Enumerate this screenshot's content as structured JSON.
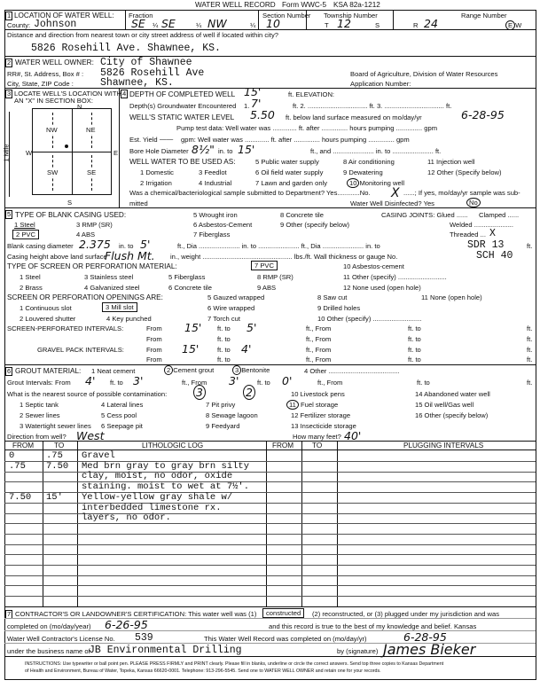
{
  "header": {
    "title": "WATER WELL RECORD",
    "form": "Form WWC-5",
    "ksa": "KSA 82a-1212"
  },
  "s1": {
    "num": "1",
    "label": "LOCATION OF WATER WELL:",
    "county_label": "County:",
    "county": "Johnson",
    "fraction_label": "Fraction",
    "frac1": "SE",
    "frac2": "SE",
    "frac3": "NW",
    "quarter": "¼",
    "section_label": "Section Number",
    "section": "10",
    "township_label": "Township Number",
    "t": "T",
    "township": "12",
    "s": "S",
    "range_label": "Range Number",
    "r": "R",
    "range": "24",
    "e": "E",
    "w": "W",
    "distance_q": "Distance and direction from nearest town or city street address of well if located within city?",
    "distance": "5826 Rosehill Ave. Shawnee, KS."
  },
  "s2": {
    "num": "2",
    "label": "WATER WELL OWNER:",
    "owner": "City of Shawnee",
    "addr_label": "RR#, St. Address, Box # :",
    "addr": "5826 Rosehill Ave",
    "city_label": "City, State, ZIP Code       :",
    "city": "Shawnee, KS.",
    "board": "Board of Agriculture, Division of Water Resources",
    "app": "Application Number:"
  },
  "s3": {
    "num": "3",
    "label1": "LOCATE WELL'S LOCATION WITH",
    "label2": "AN \"X\" IN SECTION BOX:",
    "n": "N",
    "s": "S",
    "e": "E",
    "w": "W",
    "mile": "1 Mile",
    "nw": "NW",
    "ne": "NE",
    "sw": "SW",
    "se": "SE"
  },
  "s4": {
    "num": "4",
    "depth_label": "DEPTH OF COMPLETED WELL",
    "depth": "15'",
    "elev": "ft. ELEVATION:",
    "gw_label": "Depth(s) Groundwater Encountered",
    "gw1_n": "1.",
    "gw1": "7'",
    "gw_rest": "ft. 2. ................................ ft. 3. ................................ ft.",
    "static_label": "WELL'S STATIC WATER LEVEL",
    "static": "5.50",
    "static_rest": "ft. below land surface measured on mo/day/yr",
    "static_date": "6-28-95",
    "pump": "Pump test data:  Well water was ............. ft. after .............. hours pumping .............. gpm",
    "yield_label": "Est. Yield",
    "yield": "——",
    "yield_rest": "gpm:  Well water was ............. ft. after .............. hours pumping .............. gpm",
    "bore_label": "Bore Hole Diameter",
    "bore": "8½\"",
    "bore_in": "in. to",
    "bore_to": "15'",
    "bore_rest": "ft., and ...................... in. to ...................... ft.",
    "use_label": "WELL WATER TO BE USED AS:",
    "uses": [
      "1 Domestic",
      "2 Irrigation",
      "3 Feedlot",
      "4 Industrial",
      "5 Public water supply",
      "6 Oil field water supply",
      "7 Lawn and garden only",
      "8 Air conditioning",
      "9 Dewatering",
      "10",
      "Monitoring well",
      "11 Injection well",
      "12 Other (Specify below)"
    ],
    "chem": "Was a chemical/bacteriological sample submitted to Department? Yes............No.",
    "chem_x": "X",
    "chem_rest": "......; If yes, mo/day/yr sample was sub-",
    "mitted": "mitted",
    "disinf": "Water Well Disinfected?  Yes",
    "disinf_no": "No"
  },
  "s5": {
    "num": "5",
    "label": "TYPE OF BLANK CASING USED:",
    "casing": [
      "1 Steel",
      "2 PVC",
      "3 RMP (SR)",
      "4 ABS",
      "5 Wrought iron",
      "6 Asbestos-Cement",
      "7 Fiberglass",
      "8 Concrete tile",
      "9 Other (specify below)"
    ],
    "joints": "CASING JOINTS: Glued ......",
    "clamped": "Clamped ......",
    "welded": "Welded .....................",
    "threaded": "Threaded ...",
    "threaded_x": "X",
    "dia_label": "Blank casing diameter",
    "dia": "2.375",
    "dia_in": "in. to",
    "dia_to": "5'",
    "dia_rest": "ft., Dia ...................... in. to ...................... ft., Dia ...................... in. to",
    "sdr": "SDR 13",
    "ft": "ft.",
    "height_label": "Casing height above land surface",
    "height": "Flush Mt.",
    "height_rest": "in., weight ................................................ lbs./ft. Wall thickness or gauge No.",
    "gauge": "SCH 40",
    "screen_label": "TYPE OF SCREEN OR PERFORATION MATERIAL:",
    "screen": [
      "1 Steel",
      "2 Brass",
      "3 Stainless steel",
      "4 Galvanized steel",
      "5 Fiberglass",
      "6 Concrete tile",
      "7 PVC",
      "8 RMP (SR)",
      "9 ABS",
      "10 Asbestos-cement",
      "11 Other (specify) ..........................",
      "12 None used (open hole)"
    ],
    "open_label": "SCREEN OR PERFORATION OPENINGS ARE:",
    "openings": [
      "1 Continuous slot",
      "2 Louvered shutter",
      "3 Mill slot",
      "4 Key punched",
      "5 Gauzed wrapped",
      "6 Wire wrapped",
      "7 Torch cut",
      "8 Saw cut",
      "9 Drilled holes",
      "10 Other (specify) ..........................",
      "11 None (open hole)"
    ],
    "sp_label": "SCREEN-PERFORATED INTERVALS:",
    "gp_label": "GRAVEL PACK INTERVALS:",
    "from": "From",
    "ft_to": "ft. to",
    "ft_from": "ft., From",
    "ft_to2": "ft. to",
    "ft_end": "ft.",
    "sp_from": "15'",
    "sp_to": "5'",
    "gp_from": "15'",
    "gp_to": "4'"
  },
  "s6": {
    "num": "6",
    "label": "GROUT MATERIAL:",
    "grout": [
      "1 Neat cement",
      "2",
      "Cement grout",
      "3",
      "Bentonite",
      "4 Other ......................................"
    ],
    "int_label": "Grout Intervals:   From",
    "g_from1": "4'",
    "g_to1": "3'",
    "g_from2": "3'",
    "g_to2": "0'",
    "mark3": "3",
    "mark2": "2",
    "src_label": "What is the nearest source of possible contamination:",
    "sources": [
      "1 Septic tank",
      "2 Sewer lines",
      "3 Watertight sewer lines",
      "4 Lateral lines",
      "5 Cess pool",
      "6 Seepage pit",
      "7 Pit privy",
      "8 Sewage lagoon",
      "9 Feedyard",
      "10 Livestock pens",
      "11",
      "Fuel storage",
      "12 Fertilizer storage",
      "13 Insecticide storage",
      "14 Abandoned water well",
      "15 Oil well/Gas well",
      "16 Other (specify below)"
    ],
    "dir_label": "Direction from well?",
    "dir": "West",
    "feet_label": "How many feet?",
    "feet": "40'"
  },
  "log": {
    "headers": [
      "FROM",
      "TO",
      "LITHOLOGIC LOG",
      "FROM",
      "TO",
      "PLUGGING INTERVALS"
    ],
    "rows": [
      [
        "0",
        ".75",
        "Gravel"
      ],
      [
        ".75",
        "7.50",
        "Med brn gray to gray brn silty"
      ],
      [
        "",
        "",
        "clay, moist, no odor, oxide"
      ],
      [
        "",
        "",
        "staining. moist to wet at 7½'."
      ],
      [
        "7.50",
        "15'",
        "Yellow-yellow gray shale w/"
      ],
      [
        "",
        "",
        "interbedded limestone rx."
      ],
      [
        "",
        "",
        "layers, no odor."
      ]
    ]
  },
  "s7": {
    "num": "7",
    "cert": "CONTRACTOR'S OR LANDOWNER'S CERTIFICATION: This water well was (1)",
    "constructed": "constructed",
    "cert_rest": "(2) reconstructed, or (3) plugged under my jurisdiction and was",
    "completed_label": "completed on (mo/day/year)",
    "completed": "6-26-95",
    "true": "and this record is true to the best of my knowledge and belief. Kansas",
    "license_label": "Water Well Contractor's License No.",
    "license": "539",
    "record_label": "This Water Well Record was completed on (mo/day/yr)",
    "record_date": "6-28-95",
    "business_label": "under the business name of",
    "business": "JB Environmental Drilling",
    "sig_label": "by (signature)",
    "signature": "James Bieker",
    "instr1": "INSTRUCTIONS: Use typewriter or ball point pen. PLEASE PRESS FIRMLY and PRINT clearly. Please fill in blanks, underline or circle the correct answers. Send top three copies to Kansas Department",
    "instr2": "of Health and Environment, Bureau of Water, Topeka, Kansas 66620-0001. Telephone: 913-296-5545. Send one to WATER WELL OWNER and retain one for your records."
  }
}
